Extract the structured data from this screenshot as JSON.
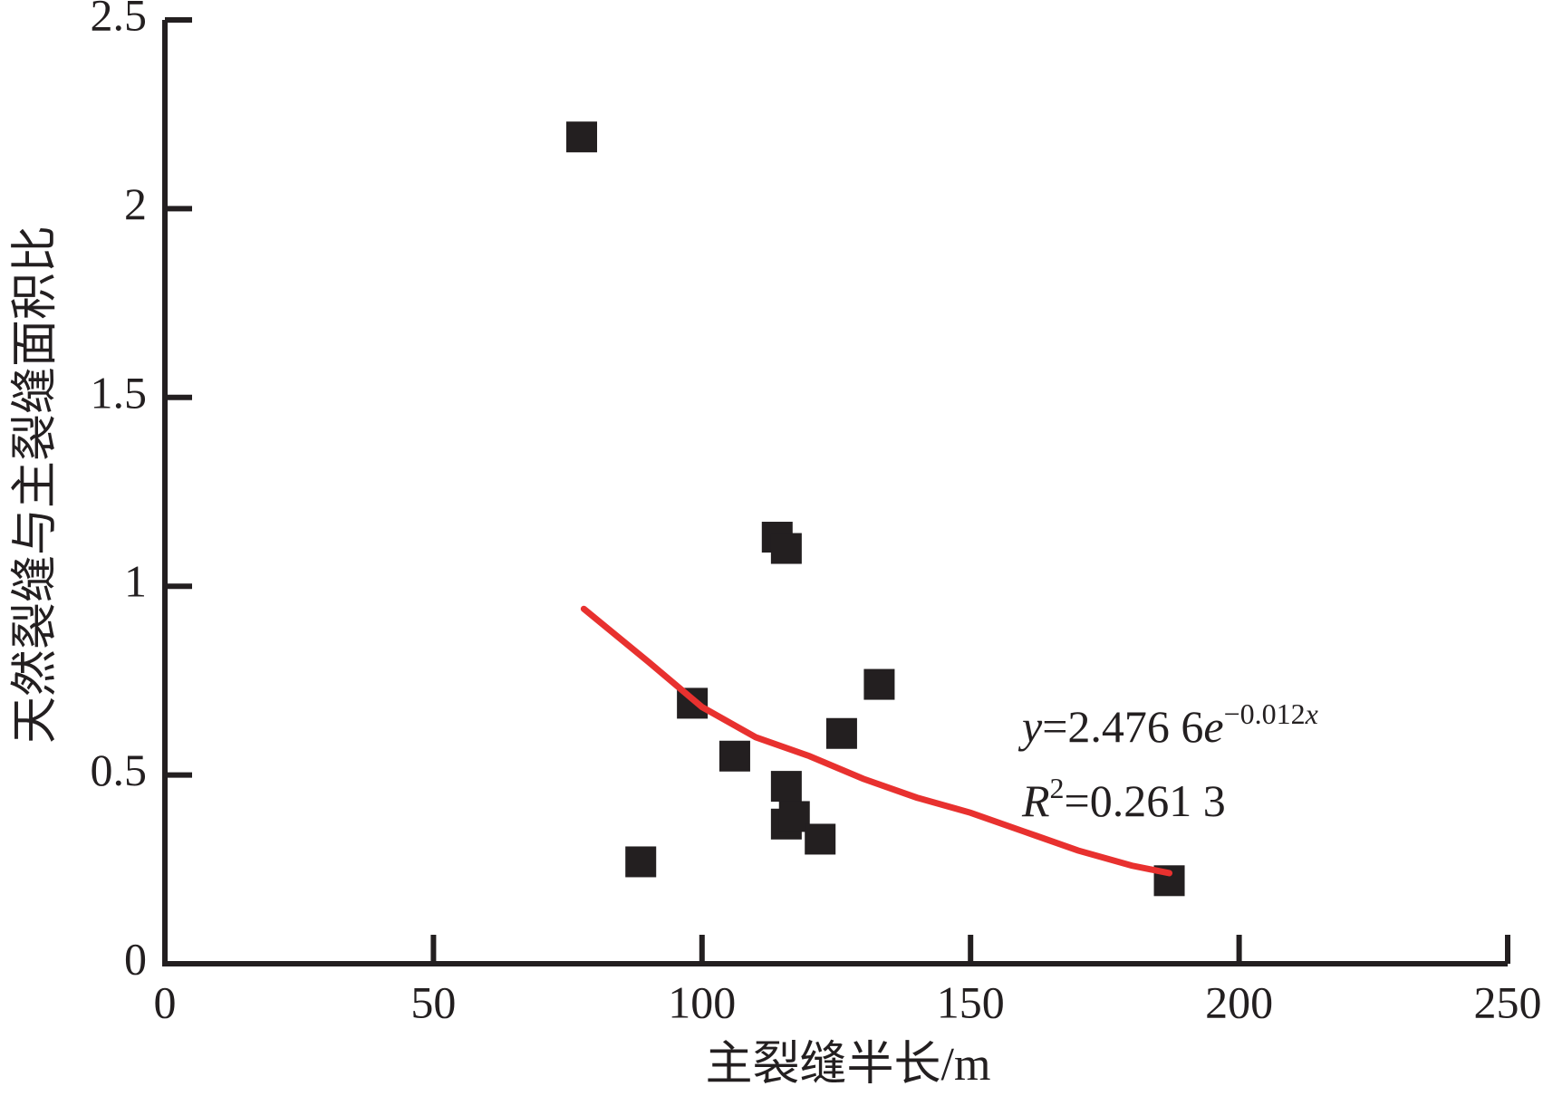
{
  "chart_data": {
    "type": "scatter",
    "xlabel": "主裂缝半长/m",
    "ylabel": "天然裂缝与主裂缝面积比",
    "xlim": [
      0,
      250
    ],
    "xticks": [
      0,
      50,
      100,
      150,
      200,
      250
    ],
    "ylim": [
      0,
      2.5
    ],
    "yticks": [
      0,
      0.5,
      1,
      1.5,
      2,
      2.5
    ],
    "grid": false,
    "series": [
      {
        "color": "#231f20",
        "x": [
          77.6,
          88.6,
          98.2,
          106.1,
          114.0,
          115.7,
          115.7,
          115.7,
          117.2,
          122.0,
          126.0,
          133.0,
          187.0
        ],
        "values": [
          2.19,
          0.27,
          0.69,
          0.55,
          1.13,
          1.1,
          0.47,
          0.37,
          0.39,
          0.33,
          0.61,
          0.74,
          0.22
        ]
      },
      {
        "type": "line",
        "color": "#e8312f",
        "x": [
          78,
          90,
          100,
          110,
          120,
          130,
          140,
          150,
          160,
          170,
          180,
          187
        ],
        "values": [
          0.94,
          0.8,
          0.68,
          0.6,
          0.55,
          0.49,
          0.44,
          0.4,
          0.35,
          0.3,
          0.26,
          0.24
        ]
      }
    ],
    "equation_parts": [
      "y",
      "=2.476 6",
      "e",
      "−0.012",
      "x"
    ],
    "r2_parts": [
      "R",
      "2",
      "=0.261 3"
    ]
  }
}
